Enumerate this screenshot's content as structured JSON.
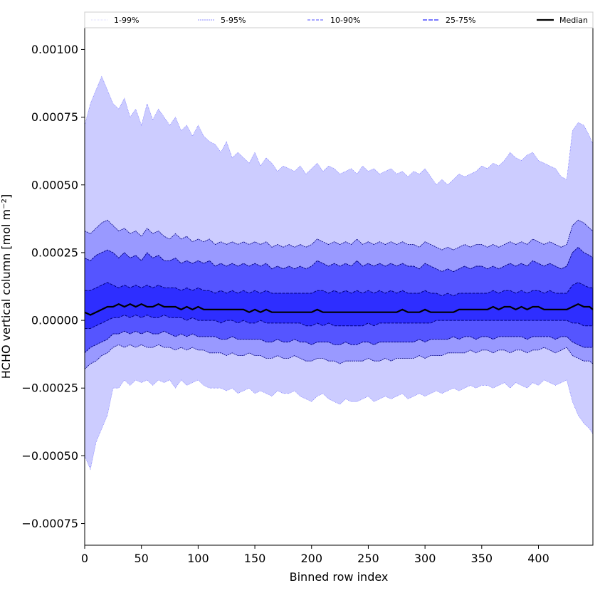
{
  "chart_data": {
    "type": "area",
    "title": "",
    "xlabel": "Binned row index",
    "ylabel": "HCHO vertical column [mol m⁻²]",
    "xlim": [
      0,
      448
    ],
    "ylim": [
      -0.00083,
      0.00108
    ],
    "x_ticks": [
      0,
      50,
      100,
      150,
      200,
      250,
      300,
      350,
      400
    ],
    "x_tick_labels": [
      "0",
      "50",
      "100",
      "150",
      "200",
      "250",
      "300",
      "350",
      "400"
    ],
    "y_ticks": [
      -0.00075,
      -0.0005,
      -0.00025,
      0.0,
      0.00025,
      0.0005,
      0.00075,
      0.001
    ],
    "y_tick_labels": [
      "−0.00075",
      "−0.00050",
      "−0.00025",
      "0.00000",
      "0.00025",
      "0.00050",
      "0.00075",
      "0.00100"
    ],
    "grid": false,
    "legend_position": "top (across full width)",
    "legend": [
      "1-99%",
      "5-95%",
      "10-90%",
      "25-75%",
      "Median"
    ],
    "x": [
      0,
      5,
      10,
      15,
      20,
      25,
      30,
      35,
      40,
      45,
      50,
      55,
      60,
      65,
      70,
      75,
      80,
      85,
      90,
      95,
      100,
      105,
      110,
      115,
      120,
      125,
      130,
      135,
      140,
      145,
      150,
      155,
      160,
      165,
      170,
      175,
      180,
      185,
      190,
      195,
      200,
      205,
      210,
      215,
      220,
      225,
      230,
      235,
      240,
      245,
      250,
      255,
      260,
      265,
      270,
      275,
      280,
      285,
      290,
      295,
      300,
      305,
      310,
      315,
      320,
      325,
      330,
      335,
      340,
      345,
      350,
      355,
      360,
      365,
      370,
      375,
      380,
      385,
      390,
      395,
      400,
      405,
      410,
      415,
      420,
      425,
      430,
      435,
      440,
      445,
      448
    ],
    "series": [
      {
        "name": "1-99%",
        "color": "#ccccff",
        "lower": [
          -0.0005,
          -0.00055,
          -0.00045,
          -0.0004,
          -0.00035,
          -0.00025,
          -0.00025,
          -0.00022,
          -0.00024,
          -0.00022,
          -0.00023,
          -0.00022,
          -0.00024,
          -0.00022,
          -0.00023,
          -0.00022,
          -0.00025,
          -0.00022,
          -0.00024,
          -0.00023,
          -0.00022,
          -0.00024,
          -0.00025,
          -0.00025,
          -0.00025,
          -0.00026,
          -0.00025,
          -0.00027,
          -0.00026,
          -0.00025,
          -0.00027,
          -0.00026,
          -0.00027,
          -0.00028,
          -0.00026,
          -0.00027,
          -0.00027,
          -0.00026,
          -0.00028,
          -0.00029,
          -0.0003,
          -0.00028,
          -0.00027,
          -0.00029,
          -0.0003,
          -0.00031,
          -0.00029,
          -0.0003,
          -0.0003,
          -0.00029,
          -0.00028,
          -0.0003,
          -0.00029,
          -0.00028,
          -0.00029,
          -0.00028,
          -0.00027,
          -0.00029,
          -0.00028,
          -0.00027,
          -0.00028,
          -0.00027,
          -0.00026,
          -0.00027,
          -0.00026,
          -0.00025,
          -0.00026,
          -0.00025,
          -0.00024,
          -0.00025,
          -0.00024,
          -0.00024,
          -0.00025,
          -0.00024,
          -0.00023,
          -0.00025,
          -0.00023,
          -0.00024,
          -0.00025,
          -0.00023,
          -0.00024,
          -0.00022,
          -0.00023,
          -0.00024,
          -0.00023,
          -0.00022,
          -0.0003,
          -0.00035,
          -0.00038,
          -0.0004,
          -0.00042
        ],
        "upper": [
          0.00072,
          0.0008,
          0.00085,
          0.0009,
          0.00085,
          0.0008,
          0.00078,
          0.00082,
          0.00075,
          0.00078,
          0.00072,
          0.0008,
          0.00074,
          0.00078,
          0.00075,
          0.00072,
          0.00075,
          0.0007,
          0.00072,
          0.00068,
          0.00072,
          0.00068,
          0.00066,
          0.00065,
          0.00062,
          0.00066,
          0.0006,
          0.00062,
          0.0006,
          0.00058,
          0.00062,
          0.00057,
          0.0006,
          0.00058,
          0.00055,
          0.00057,
          0.00056,
          0.00055,
          0.00057,
          0.00054,
          0.00056,
          0.00058,
          0.00055,
          0.00057,
          0.00056,
          0.00054,
          0.00055,
          0.00056,
          0.00054,
          0.00057,
          0.00055,
          0.00056,
          0.00054,
          0.00055,
          0.00056,
          0.00054,
          0.00055,
          0.00053,
          0.00055,
          0.00054,
          0.00056,
          0.00053,
          0.0005,
          0.00052,
          0.0005,
          0.00052,
          0.00054,
          0.00053,
          0.00054,
          0.00055,
          0.00057,
          0.00056,
          0.00058,
          0.00057,
          0.00059,
          0.00062,
          0.0006,
          0.00059,
          0.00061,
          0.00062,
          0.00059,
          0.00058,
          0.00057,
          0.00056,
          0.00053,
          0.00052,
          0.0007,
          0.00073,
          0.00072,
          0.00068,
          0.00065
        ]
      },
      {
        "name": "5-95%",
        "color": "#9999ff",
        "lower": [
          -0.00018,
          -0.00016,
          -0.00015,
          -0.00013,
          -0.00012,
          -0.0001,
          -9e-05,
          -0.0001,
          -9e-05,
          -0.0001,
          -9e-05,
          -0.0001,
          -0.0001,
          -9e-05,
          -0.0001,
          -0.0001,
          -0.00011,
          -0.0001,
          -0.00011,
          -0.0001,
          -0.00011,
          -0.00011,
          -0.00012,
          -0.00012,
          -0.00012,
          -0.00013,
          -0.00012,
          -0.00013,
          -0.00013,
          -0.00012,
          -0.00013,
          -0.00013,
          -0.00014,
          -0.00014,
          -0.00013,
          -0.00014,
          -0.00014,
          -0.00013,
          -0.00014,
          -0.00015,
          -0.00015,
          -0.00014,
          -0.00014,
          -0.00015,
          -0.00015,
          -0.00016,
          -0.00015,
          -0.00015,
          -0.00015,
          -0.00015,
          -0.00014,
          -0.00015,
          -0.00015,
          -0.00014,
          -0.00015,
          -0.00014,
          -0.00014,
          -0.00014,
          -0.00014,
          -0.00013,
          -0.00014,
          -0.00013,
          -0.00013,
          -0.00013,
          -0.00012,
          -0.00012,
          -0.00012,
          -0.00012,
          -0.00011,
          -0.00012,
          -0.00011,
          -0.00011,
          -0.00012,
          -0.00011,
          -0.00011,
          -0.00012,
          -0.00011,
          -0.00011,
          -0.00012,
          -0.00011,
          -0.00011,
          -0.0001,
          -0.00011,
          -0.00012,
          -0.00011,
          -0.0001,
          -0.00013,
          -0.00014,
          -0.00015,
          -0.00015,
          -0.00016
        ],
        "upper": [
          0.00033,
          0.00032,
          0.00034,
          0.00036,
          0.00037,
          0.00035,
          0.00033,
          0.00034,
          0.00032,
          0.00033,
          0.00031,
          0.00034,
          0.00032,
          0.00033,
          0.00031,
          0.0003,
          0.00032,
          0.0003,
          0.00031,
          0.00029,
          0.0003,
          0.00029,
          0.0003,
          0.00028,
          0.00029,
          0.00028,
          0.00029,
          0.00028,
          0.00029,
          0.00028,
          0.00029,
          0.00028,
          0.00029,
          0.00027,
          0.00028,
          0.00027,
          0.00028,
          0.00027,
          0.00028,
          0.00027,
          0.00028,
          0.0003,
          0.00029,
          0.00028,
          0.00029,
          0.00028,
          0.00029,
          0.00028,
          0.0003,
          0.00028,
          0.00029,
          0.00028,
          0.00029,
          0.00028,
          0.00029,
          0.00028,
          0.00029,
          0.00028,
          0.00028,
          0.00027,
          0.00029,
          0.00028,
          0.00027,
          0.00026,
          0.00027,
          0.00026,
          0.00027,
          0.00028,
          0.00027,
          0.00028,
          0.00028,
          0.00027,
          0.00028,
          0.00027,
          0.00028,
          0.00029,
          0.00028,
          0.00029,
          0.00028,
          0.0003,
          0.00029,
          0.00028,
          0.00029,
          0.00028,
          0.00027,
          0.00028,
          0.00035,
          0.00037,
          0.00036,
          0.00034,
          0.00033
        ]
      },
      {
        "name": "10-90%",
        "color": "#5555ff",
        "lower": [
          -0.00012,
          -0.0001,
          -9e-05,
          -8e-05,
          -7e-05,
          -5e-05,
          -5e-05,
          -4e-05,
          -5e-05,
          -4e-05,
          -5e-05,
          -4e-05,
          -5e-05,
          -5e-05,
          -4e-05,
          -5e-05,
          -6e-05,
          -5e-05,
          -6e-05,
          -5e-05,
          -6e-05,
          -6e-05,
          -6e-05,
          -6e-05,
          -7e-05,
          -7e-05,
          -6e-05,
          -7e-05,
          -7e-05,
          -7e-05,
          -7e-05,
          -7e-05,
          -8e-05,
          -8e-05,
          -7e-05,
          -8e-05,
          -8e-05,
          -7e-05,
          -8e-05,
          -8e-05,
          -9e-05,
          -8e-05,
          -8e-05,
          -8e-05,
          -9e-05,
          -9e-05,
          -8e-05,
          -9e-05,
          -9e-05,
          -8e-05,
          -8e-05,
          -9e-05,
          -8e-05,
          -8e-05,
          -8e-05,
          -8e-05,
          -8e-05,
          -8e-05,
          -8e-05,
          -7e-05,
          -8e-05,
          -7e-05,
          -7e-05,
          -7e-05,
          -7e-05,
          -6e-05,
          -7e-05,
          -6e-05,
          -6e-05,
          -7e-05,
          -6e-05,
          -6e-05,
          -7e-05,
          -6e-05,
          -6e-05,
          -6e-05,
          -6e-05,
          -6e-05,
          -7e-05,
          -6e-05,
          -6e-05,
          -6e-05,
          -6e-05,
          -7e-05,
          -6e-05,
          -6e-05,
          -8e-05,
          -9e-05,
          -0.0001,
          -0.0001,
          -0.0001
        ],
        "upper": [
          0.00023,
          0.00022,
          0.00024,
          0.00025,
          0.00026,
          0.00025,
          0.00023,
          0.00025,
          0.00023,
          0.00024,
          0.00022,
          0.00025,
          0.00023,
          0.00024,
          0.00022,
          0.00022,
          0.00023,
          0.00021,
          0.00022,
          0.00021,
          0.00022,
          0.00021,
          0.00022,
          0.0002,
          0.00021,
          0.0002,
          0.00021,
          0.0002,
          0.00021,
          0.0002,
          0.00021,
          0.0002,
          0.00021,
          0.00019,
          0.0002,
          0.00019,
          0.0002,
          0.00019,
          0.0002,
          0.00019,
          0.0002,
          0.00022,
          0.00021,
          0.0002,
          0.00021,
          0.0002,
          0.00021,
          0.0002,
          0.00022,
          0.0002,
          0.00021,
          0.0002,
          0.00021,
          0.0002,
          0.00021,
          0.0002,
          0.00021,
          0.0002,
          0.0002,
          0.00019,
          0.00021,
          0.0002,
          0.00019,
          0.00018,
          0.00019,
          0.00018,
          0.00019,
          0.0002,
          0.00019,
          0.0002,
          0.0002,
          0.00019,
          0.0002,
          0.00019,
          0.0002,
          0.00021,
          0.0002,
          0.00021,
          0.0002,
          0.00022,
          0.00021,
          0.0002,
          0.00021,
          0.0002,
          0.00019,
          0.0002,
          0.00025,
          0.00027,
          0.00025,
          0.00024,
          0.00023
        ]
      },
      {
        "name": "25-75%",
        "color": "#2e2eff",
        "lower": [
          -3e-05,
          -3e-05,
          -2e-05,
          -1e-05,
          0.0,
          1e-05,
          1e-05,
          2e-05,
          1e-05,
          2e-05,
          1e-05,
          2e-05,
          1e-05,
          1e-05,
          2e-05,
          1e-05,
          1e-05,
          1e-05,
          0.0,
          1e-05,
          0.0,
          0.0,
          0.0,
          0.0,
          -1e-05,
          0.0,
          0.0,
          -1e-05,
          0.0,
          -1e-05,
          -1e-05,
          0.0,
          -1e-05,
          -1e-05,
          -1e-05,
          -1e-05,
          -1e-05,
          -1e-05,
          -1e-05,
          -2e-05,
          -2e-05,
          -1e-05,
          -2e-05,
          -1e-05,
          -2e-05,
          -2e-05,
          -2e-05,
          -2e-05,
          -2e-05,
          -2e-05,
          -1e-05,
          -2e-05,
          -1e-05,
          -1e-05,
          -1e-05,
          -1e-05,
          -1e-05,
          -1e-05,
          -1e-05,
          -1e-05,
          -1e-05,
          -1e-05,
          0.0,
          0.0,
          0.0,
          0.0,
          0.0,
          0.0,
          0.0,
          0.0,
          0.0,
          0.0,
          0.0,
          0.0,
          0.0,
          0.0,
          0.0,
          0.0,
          0.0,
          0.0,
          0.0,
          0.0,
          0.0,
          0.0,
          0.0,
          0.0,
          -1e-05,
          -1e-05,
          -2e-05,
          -2e-05,
          -2e-05
        ],
        "upper": [
          0.00011,
          0.00011,
          0.00012,
          0.00013,
          0.00014,
          0.00013,
          0.00012,
          0.00013,
          0.00012,
          0.00013,
          0.00012,
          0.00013,
          0.00012,
          0.00013,
          0.00012,
          0.00012,
          0.00012,
          0.00011,
          0.00012,
          0.00011,
          0.00012,
          0.00011,
          0.00011,
          0.0001,
          0.00011,
          0.0001,
          0.00011,
          0.0001,
          0.00011,
          0.0001,
          0.00011,
          0.0001,
          0.00011,
          0.0001,
          0.0001,
          0.0001,
          0.0001,
          0.0001,
          0.0001,
          0.0001,
          0.0001,
          0.00011,
          0.00011,
          0.0001,
          0.00011,
          0.0001,
          0.00011,
          0.0001,
          0.00011,
          0.0001,
          0.00011,
          0.0001,
          0.00011,
          0.0001,
          0.00011,
          0.0001,
          0.00011,
          0.0001,
          0.0001,
          0.0001,
          0.00011,
          0.0001,
          0.0001,
          9e-05,
          0.0001,
          9e-05,
          0.0001,
          0.0001,
          0.0001,
          0.0001,
          0.0001,
          0.0001,
          0.00011,
          0.0001,
          0.00011,
          0.00011,
          0.0001,
          0.00011,
          0.0001,
          0.00011,
          0.00011,
          0.0001,
          0.00011,
          0.0001,
          0.0001,
          0.0001,
          0.00013,
          0.00014,
          0.00013,
          0.00012,
          0.00012
        ]
      },
      {
        "name": "Median",
        "color": "#000000",
        "values": [
          3e-05,
          2e-05,
          3e-05,
          4e-05,
          5e-05,
          5e-05,
          6e-05,
          5e-05,
          6e-05,
          5e-05,
          6e-05,
          5e-05,
          5e-05,
          6e-05,
          5e-05,
          5e-05,
          5e-05,
          4e-05,
          5e-05,
          4e-05,
          5e-05,
          4e-05,
          4e-05,
          4e-05,
          4e-05,
          4e-05,
          4e-05,
          4e-05,
          4e-05,
          3e-05,
          4e-05,
          3e-05,
          4e-05,
          3e-05,
          3e-05,
          3e-05,
          3e-05,
          3e-05,
          3e-05,
          3e-05,
          3e-05,
          4e-05,
          3e-05,
          3e-05,
          3e-05,
          3e-05,
          3e-05,
          3e-05,
          3e-05,
          3e-05,
          3e-05,
          3e-05,
          3e-05,
          3e-05,
          3e-05,
          3e-05,
          4e-05,
          3e-05,
          3e-05,
          3e-05,
          4e-05,
          3e-05,
          3e-05,
          3e-05,
          3e-05,
          3e-05,
          4e-05,
          4e-05,
          4e-05,
          4e-05,
          4e-05,
          4e-05,
          5e-05,
          4e-05,
          5e-05,
          5e-05,
          4e-05,
          5e-05,
          4e-05,
          5e-05,
          5e-05,
          4e-05,
          4e-05,
          4e-05,
          4e-05,
          4e-05,
          5e-05,
          6e-05,
          5e-05,
          5e-05,
          4e-05
        ]
      }
    ]
  }
}
